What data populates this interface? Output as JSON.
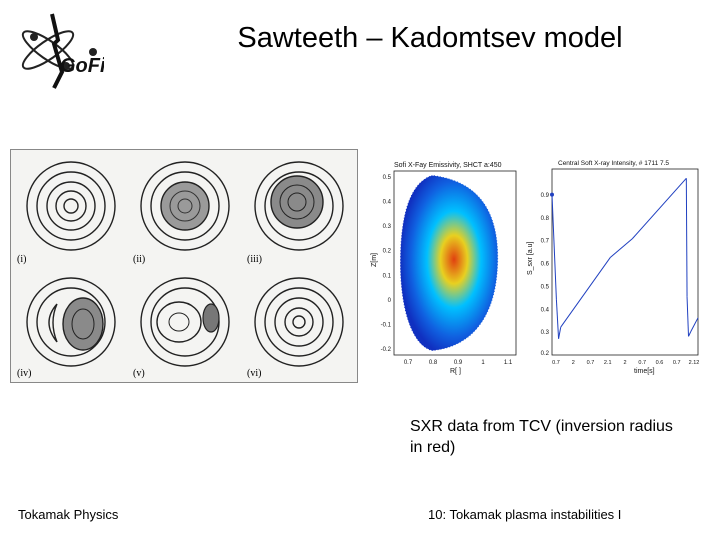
{
  "slide": {
    "title": "Sawteeth – Kadomtsev model",
    "caption": "SXR data from TCV (inversion radius in red)",
    "footer_left": "Tokamak Physics",
    "footer_right": "10: Tokamak plasma instabilities I"
  },
  "logo": {
    "text": "GoFi",
    "icon": "gofi-logo-icon"
  },
  "kadomtsev_figure": {
    "panels": [
      "(i)",
      "(ii)",
      "(iii)",
      "(iv)",
      "(v)",
      "(vi)"
    ]
  },
  "emissivity_plot": {
    "title": "Sofi X-Fay Emissivity, SHCT a:450",
    "ylabel": "Z[m]",
    "xlabel": "R[ ]",
    "yticks": [
      "0.5",
      "0.4",
      "0.3",
      "0.2",
      "0.1",
      "0",
      "-0.1",
      "-0.2"
    ],
    "xticks": [
      "0.7",
      "0.8",
      "0.9",
      "1",
      "1.1"
    ],
    "colors": {
      "outer": "#1030c0",
      "mid": "#00c0ff",
      "inner": "#e8d020",
      "core": "#e04010"
    }
  },
  "sawtooth_plot": {
    "title": "Central Soft X-ray Intensity, # 1711 7.5",
    "ylabel": "S_sxr [a.u]",
    "xlabel": "time[s]",
    "yticks": [
      "0.9",
      "0.8",
      "0.7",
      "0.6",
      "0.5",
      "0.4",
      "0.3",
      "0.2"
    ],
    "xticks": [
      "0.7",
      "2",
      "0.7",
      "2.1",
      "2",
      "0.7",
      "0.6",
      "0.7",
      "2.12"
    ],
    "chart_data": {
      "type": "line",
      "series": [
        {
          "values_x": [
            0,
            0.03,
            0.045,
            0.06,
            0.4,
            0.55,
            0.92,
            0.925,
            0.935,
            0.95,
            1.0
          ],
          "values_y": [
            0.89,
            0.44,
            0.27,
            0.32,
            0.62,
            0.7,
            0.96,
            0.45,
            0.28,
            0.3,
            0.36
          ]
        }
      ],
      "ylim": [
        0.2,
        1.0
      ]
    }
  }
}
